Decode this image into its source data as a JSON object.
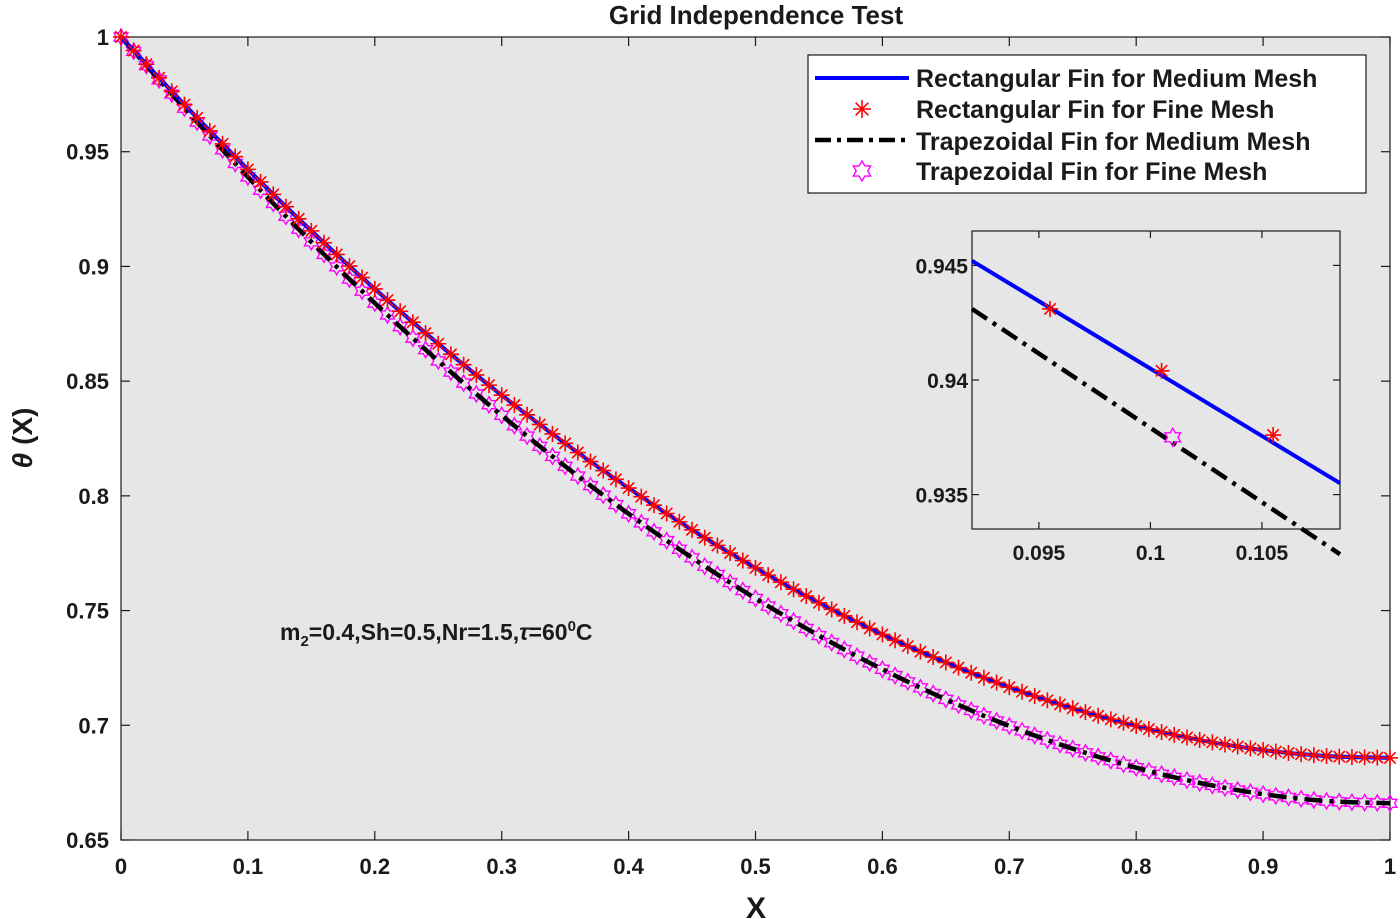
{
  "chart_data": {
    "type": "line",
    "title": "Grid Independence Test",
    "xlabel": "X",
    "ylabel": "(X)",
    "ylabel_symbol": "θ",
    "xlim": [
      0,
      1
    ],
    "ylim": [
      0.65,
      1
    ],
    "x_ticks": [
      0,
      0.1,
      0.2,
      0.3,
      0.4,
      0.5,
      0.6,
      0.7,
      0.8,
      0.9,
      1
    ],
    "x_tick_labels": [
      "0",
      "0.1",
      "0.2",
      "0.3",
      "0.4",
      "0.5",
      "0.6",
      "0.7",
      "0.8",
      "0.9",
      "1"
    ],
    "y_ticks": [
      0.65,
      0.7,
      0.75,
      0.8,
      0.85,
      0.9,
      0.95,
      1
    ],
    "y_tick_labels": [
      "0.65",
      "0.7",
      "0.75",
      "0.8",
      "0.85",
      "0.9",
      "0.95",
      "1"
    ],
    "grid": false,
    "legend_position": "top-right",
    "background_color": "#e6e6e6",
    "x": [
      0,
      0.05,
      0.1,
      0.15,
      0.2,
      0.25,
      0.3,
      0.35,
      0.4,
      0.45,
      0.5,
      0.55,
      0.6,
      0.65,
      0.7,
      0.75,
      0.8,
      0.85,
      0.9,
      0.95,
      1.0
    ],
    "series": [
      {
        "name": "Rectangular Fin for Medium Mesh",
        "style": "solid-line",
        "color": "#0000ff",
        "values": [
          1.0,
          0.9705,
          0.9423,
          0.9155,
          0.8902,
          0.8663,
          0.8439,
          0.8229,
          0.8034,
          0.7852,
          0.7686,
          0.7534,
          0.7396,
          0.7274,
          0.7166,
          0.7074,
          0.6997,
          0.6936,
          0.6892,
          0.6866,
          0.6858
        ]
      },
      {
        "name": "Rectangular Fin for Fine Mesh",
        "style": "star-markers",
        "color": "#ff0000",
        "values": [
          1.0,
          0.9705,
          0.9423,
          0.9155,
          0.8902,
          0.8663,
          0.8439,
          0.8229,
          0.8034,
          0.7852,
          0.7686,
          0.7534,
          0.7396,
          0.7274,
          0.7166,
          0.7074,
          0.6997,
          0.6936,
          0.6892,
          0.6866,
          0.6858
        ]
      },
      {
        "name": "Trapezoidal Fin for Medium Mesh",
        "style": "dash-dot-line",
        "color": "#000000",
        "values": [
          1.0,
          0.969,
          0.939,
          0.9107,
          0.884,
          0.8588,
          0.8351,
          0.8129,
          0.7922,
          0.773,
          0.7553,
          0.7391,
          0.7244,
          0.7113,
          0.6997,
          0.6898,
          0.6815,
          0.6749,
          0.67,
          0.667,
          0.666
        ]
      },
      {
        "name": "Trapezoidal Fin for Fine Mesh",
        "style": "hexagram-markers",
        "color": "#ff00ff",
        "values": [
          1.0,
          0.969,
          0.939,
          0.9107,
          0.884,
          0.8588,
          0.8351,
          0.8129,
          0.7922,
          0.773,
          0.7553,
          0.7391,
          0.7244,
          0.7113,
          0.6997,
          0.6898,
          0.6815,
          0.6749,
          0.67,
          0.667,
          0.666
        ]
      }
    ],
    "annotation": {
      "prefix": "m",
      "sub": "2",
      "middle": "=0.4,Sh=0.5,Nr=1.5,",
      "tau": "τ",
      "tau_eq": "=60",
      "sup": "0",
      "suffix": "C"
    },
    "inset": {
      "xlim": [
        0.092,
        0.1085
      ],
      "ylim": [
        0.9335,
        0.9465
      ],
      "x_ticks": [
        0.095,
        0.1,
        0.105
      ],
      "x_tick_labels": [
        "0.095",
        "0.1",
        "0.105"
      ],
      "y_ticks": [
        0.935,
        0.94,
        0.945
      ],
      "y_tick_labels": [
        "0.935",
        "0.94",
        "0.945"
      ],
      "rect_line": {
        "x": [
          0.092,
          0.1085
        ],
        "y": [
          0.9452,
          0.9355
        ]
      },
      "rect_markers": {
        "x": [
          0.0955,
          0.1005,
          0.1055
        ],
        "y": [
          0.9431,
          0.9404,
          0.9376
        ]
      },
      "trap_line": {
        "x": [
          0.092,
          0.1085
        ],
        "y": [
          0.9431,
          0.9324
        ]
      },
      "trap_markers": {
        "x": [
          0.101
        ],
        "y": [
          0.9375
        ]
      }
    }
  }
}
